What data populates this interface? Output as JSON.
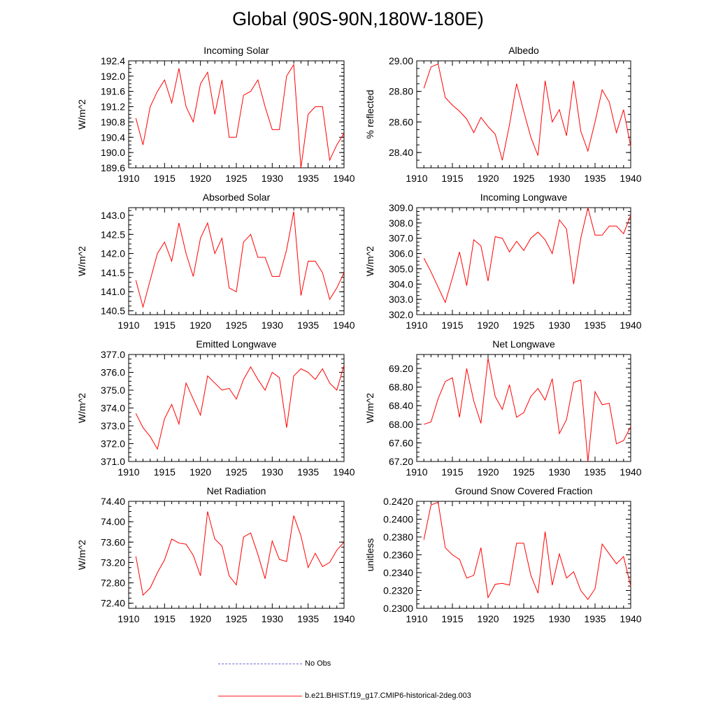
{
  "title": "Global (90S-90N,180W-180E)",
  "colors": {
    "model": "#ff0000",
    "obs": "#6a6ad8"
  },
  "legend": {
    "obs_label": "No Obs",
    "model_label": "b.e21.BHIST.f19_g17.CMIP6-historical-2deg.003"
  },
  "chart_data": [
    {
      "type": "line",
      "title": "Incoming Solar",
      "ylabel": "W/m^2",
      "xlim": [
        1910,
        1940
      ],
      "xticks": [
        1910,
        1915,
        1920,
        1925,
        1930,
        1935,
        1940
      ],
      "ylim": [
        189.6,
        192.4
      ],
      "yticks": [
        "189.6",
        "190.0",
        "190.4",
        "190.8",
        "191.2",
        "191.6",
        "192.0",
        "192.4"
      ],
      "series": [
        {
          "x": [
            1911,
            1912,
            1913,
            1914,
            1915,
            1916,
            1917,
            1918,
            1919,
            1920,
            1921,
            1922,
            1923,
            1924,
            1925,
            1926,
            1927,
            1928,
            1929,
            1930,
            1931,
            1932,
            1933,
            1934,
            1935,
            1936,
            1937,
            1938,
            1939,
            1940
          ],
          "values": [
            190.9,
            190.2,
            191.2,
            191.6,
            191.9,
            191.3,
            192.2,
            191.2,
            190.8,
            191.8,
            192.1,
            191.0,
            191.9,
            190.4,
            190.4,
            191.5,
            191.6,
            191.9,
            191.2,
            190.6,
            190.6,
            192.0,
            192.3,
            189.6,
            191.0,
            191.2,
            191.2,
            189.8,
            190.2,
            190.5
          ]
        }
      ]
    },
    {
      "type": "line",
      "title": "Albedo",
      "ylabel": "% reflected",
      "xlim": [
        1910,
        1940
      ],
      "xticks": [
        1910,
        1915,
        1920,
        1925,
        1930,
        1935,
        1940
      ],
      "ylim": [
        28.3,
        29.0
      ],
      "yticks": [
        "28.40",
        "28.60",
        "28.80",
        "29.00"
      ],
      "series": [
        {
          "x": [
            1911,
            1912,
            1913,
            1914,
            1915,
            1916,
            1917,
            1918,
            1919,
            1920,
            1921,
            1922,
            1923,
            1924,
            1925,
            1926,
            1927,
            1928,
            1929,
            1930,
            1931,
            1932,
            1933,
            1934,
            1935,
            1936,
            1937,
            1938,
            1939,
            1940
          ],
          "values": [
            28.82,
            28.96,
            28.98,
            28.76,
            28.71,
            28.67,
            28.62,
            28.53,
            28.63,
            28.57,
            28.52,
            28.35,
            28.58,
            28.85,
            28.67,
            28.5,
            28.38,
            28.87,
            28.6,
            28.68,
            28.51,
            28.87,
            28.54,
            28.41,
            28.6,
            28.81,
            28.73,
            28.53,
            28.68,
            28.44
          ]
        }
      ]
    },
    {
      "type": "line",
      "title": "Absorbed Solar",
      "ylabel": "W/m^2",
      "xlim": [
        1910,
        1940
      ],
      "xticks": [
        1910,
        1915,
        1920,
        1925,
        1930,
        1935,
        1940
      ],
      "ylim": [
        140.4,
        143.2
      ],
      "yticks": [
        "140.5",
        "141.0",
        "141.5",
        "142.0",
        "142.5",
        "143.0"
      ],
      "series": [
        {
          "x": [
            1911,
            1912,
            1913,
            1914,
            1915,
            1916,
            1917,
            1918,
            1919,
            1920,
            1921,
            1922,
            1923,
            1924,
            1925,
            1926,
            1927,
            1928,
            1929,
            1930,
            1931,
            1932,
            1933,
            1934,
            1935,
            1936,
            1937,
            1938,
            1939,
            1940
          ],
          "values": [
            141.3,
            140.6,
            141.3,
            142.0,
            142.3,
            141.8,
            142.8,
            142.0,
            141.4,
            142.4,
            142.8,
            142.0,
            142.4,
            141.1,
            141.0,
            142.3,
            142.5,
            141.9,
            141.9,
            141.4,
            141.4,
            142.1,
            143.1,
            140.9,
            141.8,
            141.8,
            141.5,
            140.8,
            141.1,
            141.5
          ]
        }
      ]
    },
    {
      "type": "line",
      "title": "Incoming Longwave",
      "ylabel": "W/m^2",
      "xlim": [
        1910,
        1940
      ],
      "xticks": [
        1910,
        1915,
        1920,
        1925,
        1930,
        1935,
        1940
      ],
      "ylim": [
        302.0,
        309.0
      ],
      "yticks": [
        "302.0",
        "303.0",
        "304.0",
        "305.0",
        "306.0",
        "307.0",
        "308.0",
        "309.0"
      ],
      "series": [
        {
          "x": [
            1911,
            1912,
            1913,
            1914,
            1915,
            1916,
            1917,
            1918,
            1919,
            1920,
            1921,
            1922,
            1923,
            1924,
            1925,
            1926,
            1927,
            1928,
            1929,
            1930,
            1931,
            1932,
            1933,
            1934,
            1935,
            1936,
            1937,
            1938,
            1939,
            1940
          ],
          "values": [
            305.7,
            304.8,
            303.8,
            302.8,
            304.4,
            306.1,
            303.9,
            306.9,
            306.5,
            304.2,
            307.1,
            307.0,
            306.1,
            306.8,
            306.2,
            307.0,
            307.4,
            306.9,
            306.0,
            308.2,
            307.6,
            304.0,
            307.0,
            309.0,
            307.2,
            307.2,
            307.8,
            307.8,
            307.3,
            308.5
          ]
        }
      ]
    },
    {
      "type": "line",
      "title": "Emitted Longwave",
      "ylabel": "W/m^2",
      "xlim": [
        1910,
        1940
      ],
      "xticks": [
        1910,
        1915,
        1920,
        1925,
        1930,
        1935,
        1940
      ],
      "ylim": [
        371.0,
        377.0
      ],
      "yticks": [
        "371.0",
        "372.0",
        "373.0",
        "374.0",
        "375.0",
        "376.0",
        "377.0"
      ],
      "series": [
        {
          "x": [
            1911,
            1912,
            1913,
            1914,
            1915,
            1916,
            1917,
            1918,
            1919,
            1920,
            1921,
            1922,
            1923,
            1924,
            1925,
            1926,
            1927,
            1928,
            1929,
            1930,
            1931,
            1932,
            1933,
            1934,
            1935,
            1936,
            1937,
            1938,
            1939,
            1940
          ],
          "values": [
            373.7,
            372.9,
            372.4,
            371.7,
            373.4,
            374.2,
            373.1,
            375.4,
            374.5,
            373.6,
            375.8,
            375.4,
            375.0,
            375.1,
            374.5,
            375.6,
            376.3,
            375.6,
            375.0,
            376.0,
            375.7,
            372.9,
            375.8,
            376.2,
            376.0,
            375.6,
            376.2,
            375.4,
            375.0,
            376.4
          ]
        }
      ]
    },
    {
      "type": "line",
      "title": "Net Longwave",
      "ylabel": "W/m^2",
      "xlim": [
        1910,
        1940
      ],
      "xticks": [
        1910,
        1915,
        1920,
        1925,
        1930,
        1935,
        1940
      ],
      "ylim": [
        67.2,
        69.5
      ],
      "yticks": [
        "67.20",
        "67.60",
        "68.00",
        "68.40",
        "68.80",
        "69.20"
      ],
      "series": [
        {
          "x": [
            1911,
            1912,
            1913,
            1914,
            1915,
            1916,
            1917,
            1918,
            1919,
            1920,
            1921,
            1922,
            1923,
            1924,
            1925,
            1926,
            1927,
            1928,
            1929,
            1930,
            1931,
            1932,
            1933,
            1934,
            1935,
            1936,
            1937,
            1938,
            1939,
            1940
          ],
          "values": [
            68.0,
            68.05,
            68.55,
            68.92,
            69.0,
            68.15,
            69.2,
            68.5,
            68.02,
            69.42,
            68.6,
            68.32,
            68.85,
            68.15,
            68.25,
            68.6,
            68.77,
            68.52,
            68.98,
            67.8,
            68.1,
            68.9,
            68.95,
            67.2,
            68.7,
            68.42,
            68.45,
            67.58,
            67.65,
            67.95
          ]
        }
      ]
    },
    {
      "type": "line",
      "title": "Net Radiation",
      "ylabel": "W/m^2",
      "xlim": [
        1910,
        1940
      ],
      "xticks": [
        1910,
        1915,
        1920,
        1925,
        1930,
        1935,
        1940
      ],
      "ylim": [
        72.3,
        74.4
      ],
      "yticks": [
        "72.40",
        "72.80",
        "73.20",
        "73.60",
        "74.00",
        "74.40"
      ],
      "series": [
        {
          "x": [
            1911,
            1912,
            1913,
            1914,
            1915,
            1916,
            1917,
            1918,
            1919,
            1920,
            1921,
            1922,
            1923,
            1924,
            1925,
            1926,
            1927,
            1928,
            1929,
            1930,
            1931,
            1932,
            1933,
            1934,
            1935,
            1936,
            1937,
            1938,
            1939,
            1940
          ],
          "values": [
            73.32,
            72.56,
            72.7,
            73.0,
            73.25,
            73.66,
            73.58,
            73.56,
            73.34,
            72.94,
            74.2,
            73.66,
            73.52,
            72.94,
            72.76,
            73.7,
            73.78,
            73.36,
            72.88,
            73.62,
            73.26,
            73.22,
            74.12,
            73.72,
            73.1,
            73.38,
            73.12,
            73.2,
            73.44,
            73.6
          ]
        }
      ]
    },
    {
      "type": "line",
      "title": "Ground Snow Covered Fraction",
      "ylabel": "unitless",
      "xlim": [
        1910,
        1940
      ],
      "xticks": [
        1910,
        1915,
        1920,
        1925,
        1930,
        1935,
        1940
      ],
      "ylim": [
        0.23,
        0.242
      ],
      "yticks": [
        "0.2300",
        "0.2320",
        "0.2340",
        "0.2360",
        "0.2380",
        "0.2400",
        "0.2420"
      ],
      "series": [
        {
          "x": [
            1911,
            1912,
            1913,
            1914,
            1915,
            1916,
            1917,
            1918,
            1919,
            1920,
            1921,
            1922,
            1923,
            1924,
            1925,
            1926,
            1927,
            1928,
            1929,
            1930,
            1931,
            1932,
            1933,
            1934,
            1935,
            1936,
            1937,
            1938,
            1939,
            1940
          ],
          "values": [
            0.2377,
            0.2416,
            0.2419,
            0.2368,
            0.236,
            0.2355,
            0.2334,
            0.2337,
            0.2368,
            0.2312,
            0.2327,
            0.2328,
            0.2326,
            0.2373,
            0.2373,
            0.2337,
            0.2317,
            0.2386,
            0.2326,
            0.2361,
            0.2334,
            0.2341,
            0.232,
            0.231,
            0.2322,
            0.2372,
            0.2361,
            0.235,
            0.2358,
            0.2325
          ]
        }
      ]
    }
  ]
}
